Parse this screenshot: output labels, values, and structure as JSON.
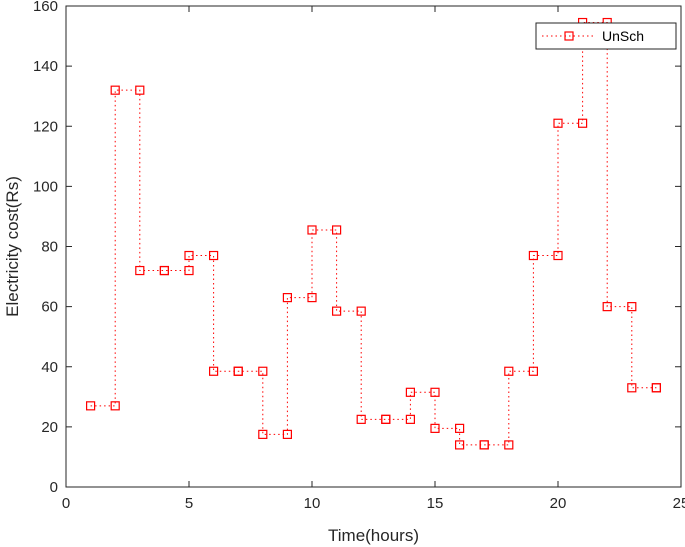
{
  "chart_data": {
    "type": "line",
    "title": "",
    "xlabel": "Time(hours)",
    "ylabel": "Electricity cost(Rs)",
    "xlim": [
      0,
      25
    ],
    "ylim": [
      0,
      160
    ],
    "xticks": [
      0,
      5,
      10,
      15,
      20,
      25
    ],
    "yticks": [
      0,
      20,
      40,
      60,
      80,
      100,
      120,
      140,
      160
    ],
    "grid": false,
    "legend_position": "top-right",
    "line_style": "dotted stairs with square markers",
    "series": [
      {
        "name": "UnSch",
        "color": "#ff0000",
        "marker": "square",
        "x": [
          1,
          2,
          3,
          4,
          5,
          6,
          7,
          8,
          9,
          10,
          11,
          12,
          13,
          14,
          15,
          16,
          17,
          18,
          19,
          20,
          21,
          22,
          23,
          24
        ],
        "y": [
          27,
          132,
          72,
          72,
          77,
          38.5,
          38.5,
          17.5,
          63,
          85.5,
          58.5,
          22.5,
          22.5,
          31.5,
          19.5,
          14,
          14,
          38.5,
          77,
          121,
          154.5,
          60,
          33,
          33
        ]
      }
    ]
  }
}
